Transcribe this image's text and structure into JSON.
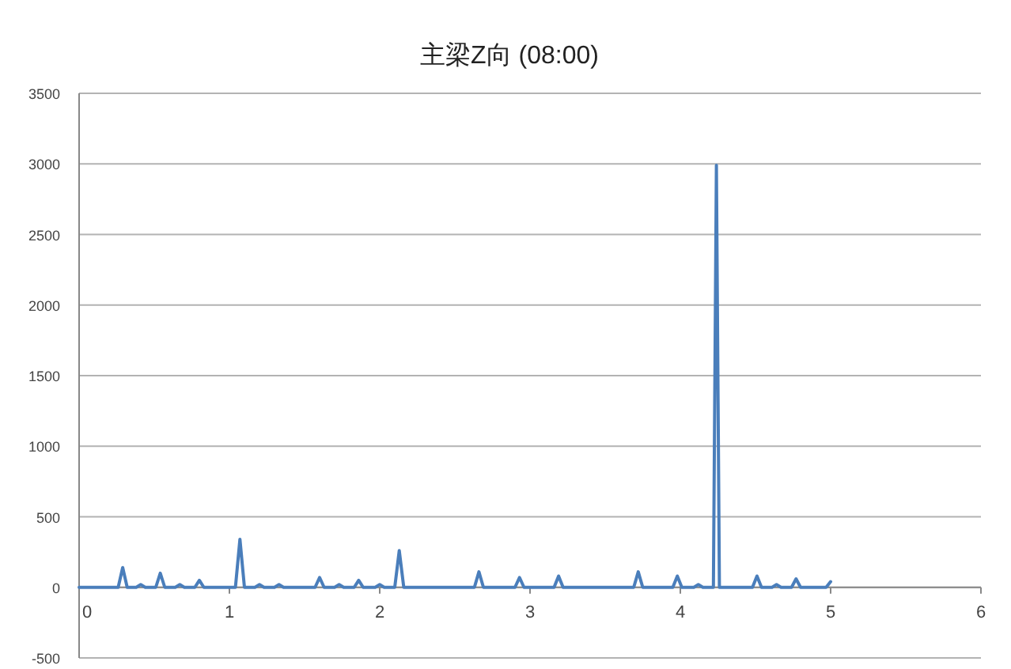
{
  "chart_data": {
    "type": "line",
    "title": "主梁Z向 (08:00)",
    "x": [
      0,
      0.26,
      0.29,
      0.32,
      0.38,
      0.41,
      0.44,
      0.51,
      0.54,
      0.57,
      0.64,
      0.67,
      0.7,
      0.77,
      0.8,
      0.83,
      1.04,
      1.07,
      1.1,
      1.17,
      1.2,
      1.23,
      1.3,
      1.33,
      1.36,
      1.57,
      1.6,
      1.63,
      1.7,
      1.73,
      1.76,
      1.83,
      1.86,
      1.89,
      1.97,
      2.0,
      2.03,
      2.1,
      2.13,
      2.16,
      2.63,
      2.66,
      2.69,
      2.9,
      2.93,
      2.96,
      3.16,
      3.19,
      3.22,
      3.69,
      3.72,
      3.75,
      3.95,
      3.98,
      4.01,
      4.09,
      4.12,
      4.15,
      4.22,
      4.24,
      4.26,
      4.48,
      4.51,
      4.54,
      4.61,
      4.64,
      4.67,
      4.74,
      4.77,
      4.8,
      4.97,
      5.0
    ],
    "series": [
      {
        "color": "#4a7ebb",
        "values": [
          0,
          0,
          140,
          0,
          0,
          20,
          0,
          0,
          100,
          0,
          0,
          20,
          0,
          0,
          50,
          0,
          0,
          340,
          0,
          0,
          20,
          0,
          0,
          20,
          0,
          0,
          70,
          0,
          0,
          20,
          0,
          0,
          50,
          0,
          0,
          20,
          0,
          0,
          260,
          0,
          0,
          110,
          0,
          0,
          70,
          0,
          0,
          80,
          0,
          0,
          110,
          0,
          0,
          80,
          0,
          0,
          20,
          0,
          0,
          2990,
          0,
          0,
          80,
          0,
          0,
          20,
          0,
          0,
          60,
          0,
          0,
          40
        ]
      }
    ],
    "xlim": [
      0,
      6
    ],
    "ylim": [
      -500,
      3500
    ],
    "xticks": [
      0,
      1,
      2,
      3,
      4,
      5,
      6
    ],
    "yticks": [
      -500,
      0,
      500,
      1000,
      1500,
      2000,
      2500,
      3000,
      3500
    ],
    "grid": "y"
  }
}
